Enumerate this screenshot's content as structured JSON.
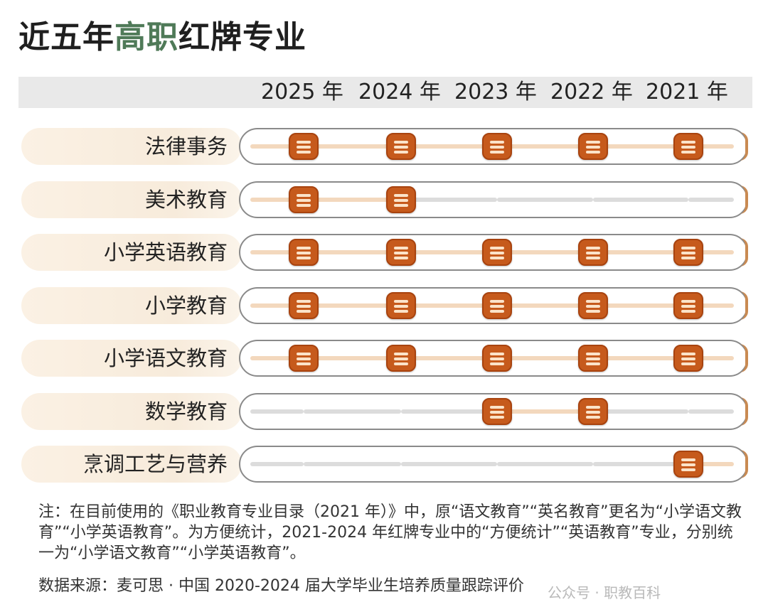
{
  "title": {
    "part1": "近五年",
    "accent": "高职",
    "part2": "红牌专业"
  },
  "colors": {
    "title_accent": "#4f7a58",
    "badge": "#c65a1c",
    "track_hot": "#f3d8bd",
    "track_cold": "#dcdcdc",
    "row_bg": "#f7ebdb"
  },
  "chart_data": {
    "type": "table",
    "title": "近五年高职红牌专业",
    "years": [
      "2025 年",
      "2024 年",
      "2023 年",
      "2022 年",
      "2021 年"
    ],
    "rows": [
      {
        "name": "法律事务",
        "red": [
          true,
          true,
          true,
          true,
          true
        ]
      },
      {
        "name": "美术教育",
        "red": [
          true,
          true,
          false,
          false,
          false
        ]
      },
      {
        "name": "小学英语教育",
        "red": [
          true,
          true,
          true,
          true,
          true
        ]
      },
      {
        "name": "小学教育",
        "red": [
          true,
          true,
          true,
          true,
          true
        ]
      },
      {
        "name": "小学语文教育",
        "red": [
          true,
          true,
          true,
          true,
          true
        ]
      },
      {
        "name": "数学教育",
        "red": [
          false,
          false,
          true,
          true,
          false
        ]
      },
      {
        "name": "烹调工艺与营养",
        "red": [
          false,
          false,
          false,
          false,
          true
        ]
      }
    ],
    "marker_icon": "red-card-icon"
  },
  "note": "注：在目前使用的《职业教育专业目录（2021 年）》中，原“语文教育”“英名教育”更名为“小学语文教育”“小学英语教育”。为方便统计，2021-2024 年红牌专业中的“方便统计”“英语教育”专业，分别统一为“小学语文教育”“小学英语教育”。",
  "source": "数据来源：麦可思 · 中国 2020-2024 届大学毕业生培养质量跟踪评价",
  "watermark": "公众号 · 职教百科"
}
